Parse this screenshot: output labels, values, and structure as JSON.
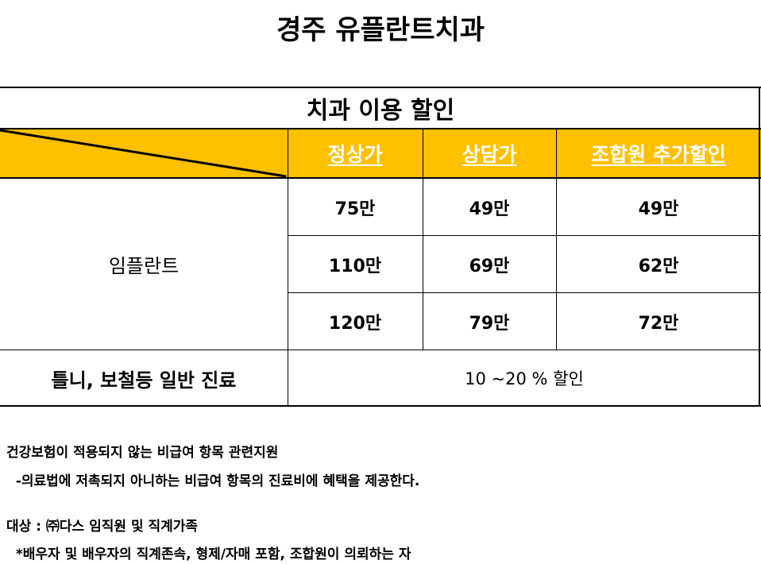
{
  "title": "경주 유플란트치과",
  "table": {
    "caption": "치과 이용 할인",
    "headers": [
      "정상가",
      "상담가",
      "조합원 추가할인"
    ],
    "header_color": "#FFC000",
    "implant_label": "임플란트",
    "implant_rows": [
      [
        "75만",
        "49만",
        "49만"
      ],
      [
        "110만",
        "69만",
        "62만"
      ],
      [
        "120만",
        "79만",
        "72만"
      ]
    ],
    "general_label": "틀니, 보철등 일반 진료",
    "general_value": "10 ~20 % 할인"
  },
  "notes": {
    "line1": "건강보험이 적용되지 않는 비급여 항목 관련지원",
    "line2": "  -의료법에 저촉되지 아니하는 비급여 항목의 진료비에 혜택을 제공한다.",
    "line3": "대상 : ㈜다스 임직원 및 직계가족",
    "line4": "  *배우자 및 배우자의 직계존속, 형제/자매 포함, 조합원이 의뢰하는 자"
  }
}
